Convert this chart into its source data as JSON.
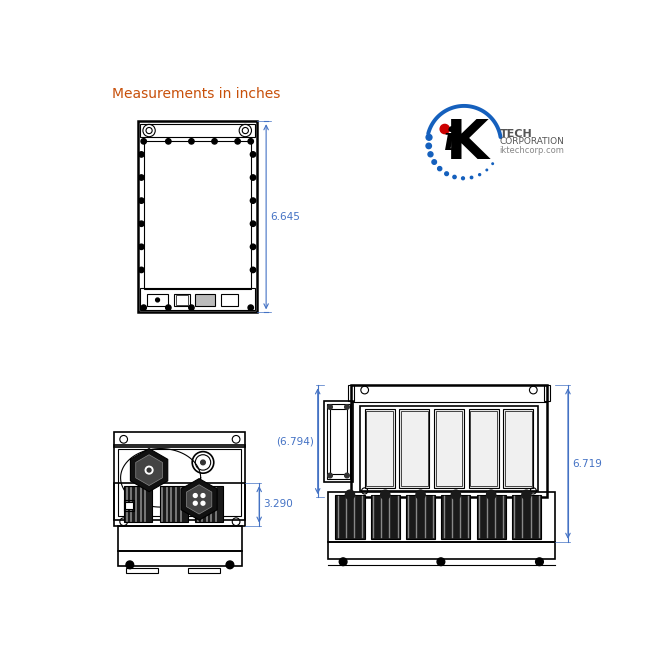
{
  "title_text": "Measurements in inches",
  "title_color": "#C8500A",
  "title_fontsize": 10,
  "dim_color": "#4472C4",
  "bg_color": "#ffffff",
  "dim_645": "6.645",
  "dim_290": "3.290",
  "dim_794": "(6.794)",
  "dim_719": "6.719",
  "logo_url": "iktechcorp.com"
}
